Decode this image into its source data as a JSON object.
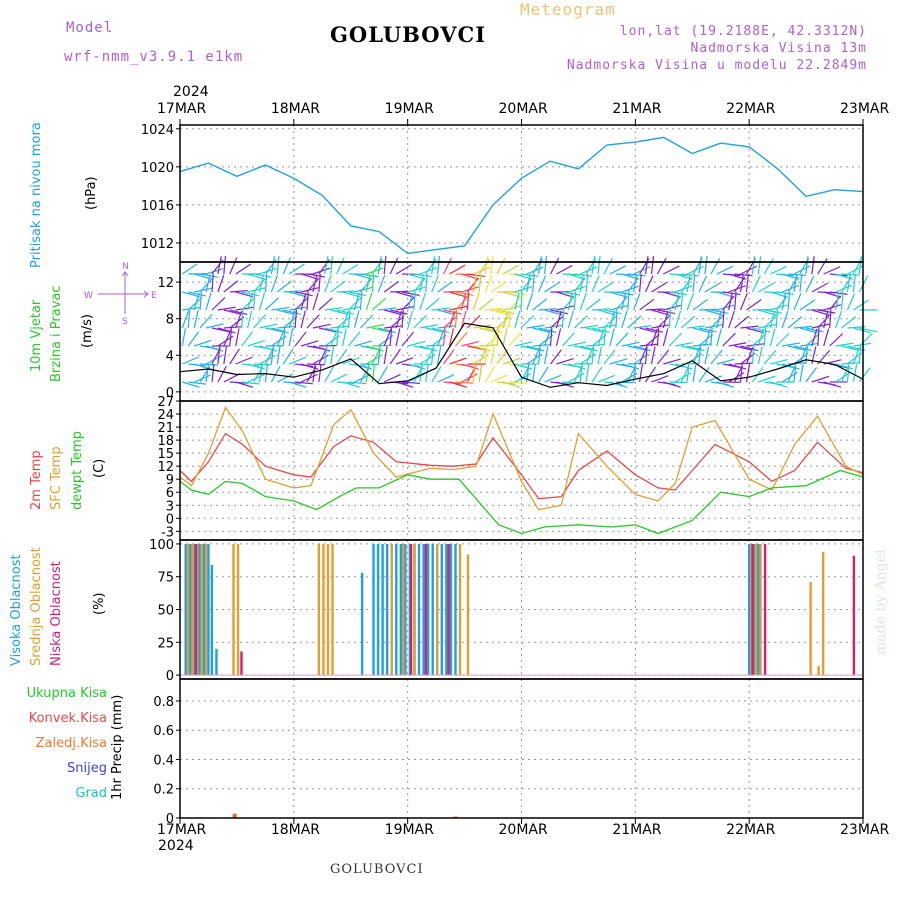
{
  "header": {
    "model_label": "Model",
    "model_name": "wrf-nmm_v3.9.1 e1km",
    "station": "GOLUBOVCI",
    "meteogram": "Meteogram",
    "lonlat": "lon,lat (19.2188E, 42.3312N)",
    "altitude": "Nadmorska Visina 13m",
    "model_altitude": "Nadmorska Visina u modelu 22.2849m"
  },
  "footer": {
    "station": "GOLUBOVCI",
    "watermark": "made by Angel"
  },
  "year": "2024",
  "dates": [
    "17MAR",
    "18MAR",
    "19MAR",
    "20MAR",
    "21MAR",
    "22MAR",
    "23MAR"
  ],
  "labels": {
    "pressure_name": "Pritisak na nivou mora",
    "pressure_unit": "(hPa)",
    "wind_name1": "10m Vjetar",
    "wind_name2": "Brzina i Pravac",
    "wind_unit": "(m/s)",
    "compass_n": "N",
    "compass_e": "E",
    "compass_w": "W",
    "compass_s": "S",
    "temp_2m": "2m Temp",
    "temp_sfc": "SFC Temp",
    "temp_dew": "dewpt Temp",
    "temp_unit": "(C)",
    "cloud_high": "Visoka Oblacnost",
    "cloud_mid": "Srednja Oblacnost",
    "cloud_low": "Niska Oblacnost",
    "cloud_unit": "(%)",
    "precip_total": "Ukupna Kisa",
    "precip_conv": "Konvek.Kisa",
    "precip_frz": "Zaledj.Kisa",
    "precip_snow": "Snijeg",
    "precip_hail": "Grad",
    "precip_unit": "1hr Precip (mm)"
  },
  "colors": {
    "pressure": "#1ea0e6",
    "temp2m": "#e84848",
    "sfc": "#e0a030",
    "dew": "#28c828",
    "cloud_high": "#1ea0e6",
    "cloud_mid": "#e0a030",
    "cloud_low": "#d0207a",
    "wind_label": "#28c828",
    "violet": "#b05fd0"
  },
  "chart_data": [
    {
      "type": "line",
      "name": "pressure",
      "ylabel": "Pritisak na nivou mora (hPa)",
      "ylim": [
        1010,
        1024.4
      ],
      "yticks": [
        1012,
        1016,
        1020,
        1024
      ],
      "series": [
        {
          "x": [
            0,
            0.25,
            0.5,
            0.75,
            1,
            1.25,
            1.5,
            1.75,
            2,
            2.25,
            2.5,
            2.75,
            3,
            3.25,
            3.5,
            3.75,
            4,
            4.25,
            4.5,
            4.75,
            5,
            5.25,
            5.5,
            5.75,
            6
          ],
          "values": [
            1019.5,
            1020.4,
            1019.0,
            1020.2,
            1018.8,
            1017.0,
            1013.8,
            1013.2,
            1010.9,
            1011.3,
            1011.7,
            1016.0,
            1018.8,
            1020.6,
            1019.8,
            1022.3,
            1022.6,
            1023.1,
            1021.4,
            1022.5,
            1022.1,
            1019.8,
            1016.9,
            1017.6,
            1017.4
          ]
        }
      ]
    },
    {
      "type": "line",
      "name": "wind",
      "ylabel": "10m Vjetar Brzina i Pravac (m/s)",
      "ylim": [
        -1,
        14.2
      ],
      "yticks": [
        0,
        4,
        8,
        12
      ],
      "series": [
        {
          "x": [
            0,
            0.25,
            0.5,
            0.75,
            1,
            1.25,
            1.5,
            1.75,
            2,
            2.25,
            2.5,
            2.75,
            3,
            3.25,
            3.5,
            3.75,
            4,
            4.25,
            4.5,
            4.75,
            5,
            5.25,
            5.5,
            5.75,
            6
          ],
          "values": [
            2.2,
            2.5,
            1.9,
            2.0,
            1.6,
            2.4,
            3.6,
            0.9,
            1.2,
            2.6,
            7.5,
            7.0,
            1.6,
            0.5,
            1.0,
            0.7,
            1.4,
            2.0,
            3.4,
            1.2,
            1.6,
            2.5,
            3.5,
            3.0,
            1.4
          ]
        }
      ]
    },
    {
      "type": "line",
      "name": "temperature",
      "ylabel": "Temp (C)",
      "ylim": [
        -5,
        27
      ],
      "yticks": [
        -3,
        0,
        3,
        6,
        9,
        12,
        15,
        18,
        21,
        24,
        27
      ],
      "series": [
        {
          "name": "2m Temp",
          "x": [
            0,
            0.1,
            0.25,
            0.4,
            0.55,
            0.75,
            1,
            1.15,
            1.35,
            1.5,
            1.7,
            1.9,
            2.2,
            2.4,
            2.6,
            2.75,
            3,
            3.15,
            3.35,
            3.5,
            3.75,
            4,
            4.2,
            4.35,
            4.5,
            4.7,
            5,
            5.2,
            5.4,
            5.6,
            5.85,
            6
          ],
          "values": [
            11,
            8.5,
            13,
            19.5,
            17,
            12,
            10,
            9.5,
            16.5,
            19,
            17.5,
            13,
            12.2,
            12,
            12.5,
            18.5,
            10,
            4.5,
            5,
            11,
            15.5,
            10,
            7,
            6.5,
            11,
            17,
            13,
            8.5,
            11,
            17.5,
            11.5,
            10.5
          ]
        },
        {
          "name": "SFC Temp",
          "x": [
            0,
            0.1,
            0.25,
            0.4,
            0.55,
            0.75,
            1,
            1.15,
            1.35,
            1.5,
            1.7,
            1.9,
            2.2,
            2.4,
            2.6,
            2.75,
            3,
            3.15,
            3.35,
            3.5,
            3.75,
            4,
            4.2,
            4.35,
            4.5,
            4.7,
            5,
            5.2,
            5.4,
            5.6,
            5.85,
            6
          ],
          "values": [
            9.5,
            7.5,
            15,
            25.5,
            20,
            9,
            7,
            7.5,
            21.5,
            25,
            15,
            9.5,
            11.5,
            11.2,
            12,
            24,
            8.5,
            2,
            3,
            19.5,
            12,
            5.5,
            4,
            8,
            21,
            22.5,
            9,
            6.5,
            17,
            23.5,
            12,
            10
          ]
        },
        {
          "name": "dewpt Temp",
          "x": [
            0,
            0.1,
            0.25,
            0.4,
            0.55,
            0.75,
            1,
            1.2,
            1.4,
            1.55,
            1.75,
            2,
            2.2,
            2.45,
            2.6,
            2.8,
            3,
            3.2,
            3.5,
            3.8,
            4,
            4.2,
            4.5,
            4.75,
            5,
            5.2,
            5.5,
            5.8,
            6
          ],
          "values": [
            8.5,
            6.5,
            5.5,
            8.5,
            8,
            5,
            4,
            2,
            5,
            7,
            7,
            10,
            9,
            9,
            4.5,
            -1.5,
            -3.5,
            -2,
            -1.5,
            -2,
            -1.5,
            -3.5,
            -0.5,
            6,
            5,
            7,
            7.5,
            11,
            9.5
          ]
        }
      ]
    },
    {
      "type": "bar",
      "name": "cloud",
      "ylabel": "Oblacnost (%)",
      "ylim": [
        -3,
        103
      ],
      "yticks": [
        0,
        25,
        50,
        75,
        100
      ],
      "series": [
        {
          "name": "Visoka Oblacnost",
          "x": [
            0.05,
            0.09,
            0.13,
            0.17,
            0.21,
            0.25,
            0.28,
            0.32,
            1.6,
            1.7,
            1.74,
            1.78,
            1.82,
            1.86,
            1.9,
            1.94,
            1.98,
            2.02,
            2.06,
            2.1,
            2.14,
            2.18,
            2.22,
            2.26,
            2.3,
            2.34,
            2.38,
            2.42,
            5.0,
            5.04,
            5.08
          ],
          "values": [
            100,
            100,
            100,
            100,
            100,
            100,
            84,
            20,
            78,
            100,
            100,
            100,
            100,
            100,
            100,
            100,
            100,
            100,
            100,
            100,
            100,
            100,
            100,
            100,
            100,
            100,
            100,
            100,
            100,
            100,
            100
          ]
        },
        {
          "name": "Srednja Oblacnost",
          "x": [
            0.07,
            0.11,
            0.15,
            0.19,
            0.23,
            0.47,
            0.51,
            1.22,
            1.26,
            1.3,
            1.34,
            1.86,
            1.96,
            2.06,
            2.16,
            2.26,
            2.36,
            2.46,
            2.53,
            5.02,
            5.06,
            5.1,
            5.54,
            5.61,
            5.65
          ],
          "values": [
            100,
            100,
            100,
            100,
            100,
            100,
            100,
            100,
            100,
            100,
            100,
            100,
            100,
            100,
            100,
            100,
            100,
            100,
            92,
            100,
            100,
            100,
            71,
            7,
            94
          ]
        },
        {
          "name": "Niska Oblacnost",
          "x": [
            0.14,
            0.54,
            2.03,
            2.16,
            2.36,
            5.03,
            5.14,
            5.92
          ],
          "values": [
            100,
            18,
            100,
            100,
            100,
            100,
            100,
            91
          ]
        }
      ]
    },
    {
      "type": "bar",
      "name": "precip",
      "ylabel": "1hr Precip (mm)",
      "ylim": [
        0,
        0.95
      ],
      "yticks": [
        0,
        0.2,
        0.4,
        0.6,
        0.8
      ],
      "series": [
        {
          "name": "Ukupna Kisa",
          "x": [
            0.48,
            2.42
          ],
          "values": [
            0.03,
            0.01
          ]
        }
      ]
    }
  ]
}
